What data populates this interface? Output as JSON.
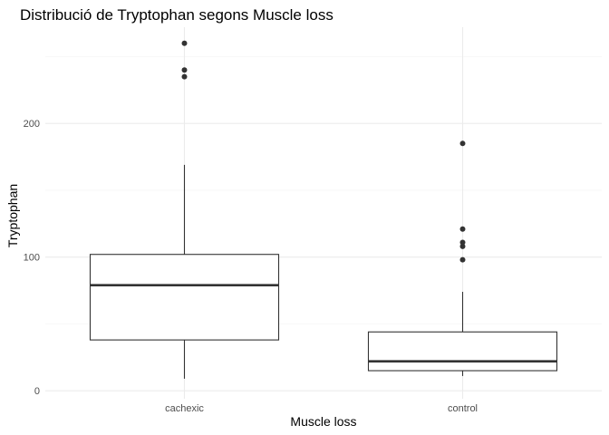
{
  "chart_data": {
    "type": "boxplot",
    "title": "Distribució de Tryptophan segons Muscle loss",
    "xlabel": "Muscle loss",
    "ylabel": "Tryptophan",
    "categories": [
      "cachexic",
      "control"
    ],
    "ylim": [
      -6,
      272
    ],
    "y_ticks": [
      0,
      100,
      200
    ],
    "y_tick_labels": [
      "0",
      "100",
      "200"
    ],
    "grid": true,
    "colors": {
      "grid_major": "#ebebeb",
      "grid_minor": "#f5f5f5",
      "box_stroke": "#333333",
      "point": "#333333"
    },
    "boxes": [
      {
        "category": "cachexic",
        "whisker_low": 9,
        "q1": 38,
        "median": 79,
        "q3": 102,
        "whisker_high": 169,
        "outliers": [
          235,
          240,
          260
        ]
      },
      {
        "category": "control",
        "whisker_low": 11,
        "q1": 15,
        "median": 22,
        "q3": 44,
        "whisker_high": 74,
        "outliers": [
          98,
          108,
          111,
          121,
          185
        ]
      }
    ]
  }
}
